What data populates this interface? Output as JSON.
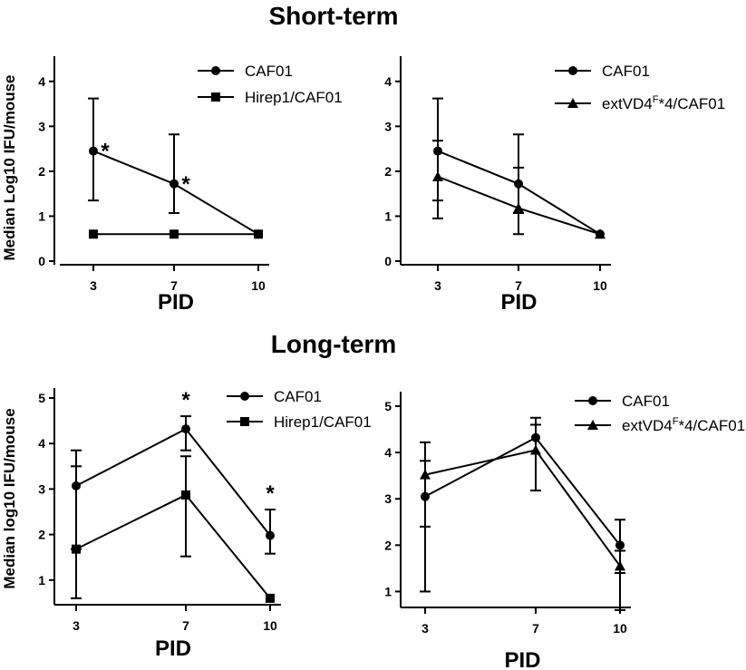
{
  "figure": {
    "top_title": "Short-term",
    "bottom_title": "Long-term"
  },
  "chart_data": [
    {
      "type": "line",
      "section": "Short-term",
      "title": "",
      "xlabel": "PID",
      "ylabel": "Median Log10 IFU/mouse",
      "x": [
        3,
        7,
        10
      ],
      "x_tick_labels": [
        "3",
        "7",
        "10"
      ],
      "ylim": [
        0,
        4.5
      ],
      "y_ticks": [
        0,
        1,
        2,
        3,
        4
      ],
      "y_tick_labels": [
        "0",
        "1",
        "2",
        "3",
        "4"
      ],
      "series": [
        {
          "name": "CAF01",
          "marker": "circle",
          "values": [
            2.45,
            1.72,
            0.6
          ],
          "error_low": [
            1.35,
            1.07,
            0.6
          ],
          "error_high": [
            3.62,
            2.82,
            0.6
          ]
        },
        {
          "name": "Hirep1/CAF01",
          "marker": "square",
          "values": [
            0.6,
            0.6,
            0.6
          ],
          "error_low": [
            0.6,
            0.6,
            0.6
          ],
          "error_high": [
            0.6,
            0.6,
            0.6
          ]
        }
      ],
      "annotations": [
        {
          "text": "*",
          "x": 3,
          "y": 2.45
        },
        {
          "text": "*",
          "x": 7,
          "y": 1.72
        }
      ]
    },
    {
      "type": "line",
      "section": "Short-term",
      "title": "",
      "xlabel": "PID",
      "ylabel": "",
      "x": [
        3,
        7,
        10
      ],
      "x_tick_labels": [
        "3",
        "7",
        "10"
      ],
      "ylim": [
        0,
        4.5
      ],
      "y_ticks": [
        0,
        1,
        2,
        3,
        4
      ],
      "y_tick_labels": [
        "0",
        "1",
        "2",
        "3",
        "4"
      ],
      "series": [
        {
          "name": "CAF01",
          "marker": "circle",
          "values": [
            2.45,
            1.72,
            0.6
          ],
          "error_low": [
            1.35,
            1.07,
            0.6
          ],
          "error_high": [
            3.62,
            2.82,
            0.6
          ]
        },
        {
          "name": "extVD4F*4/CAF01",
          "label_main": "extVD4",
          "label_sup": "F",
          "label_rest": "*4/CAF01",
          "marker": "triangle",
          "values": [
            1.88,
            1.18,
            0.6
          ],
          "error_low": [
            0.95,
            0.6,
            0.6
          ],
          "error_high": [
            2.68,
            2.08,
            0.6
          ]
        }
      ],
      "annotations": []
    },
    {
      "type": "line",
      "section": "Long-term",
      "title": "",
      "xlabel": "PID",
      "ylabel": "Median log10 IFU/mouse",
      "x": [
        3,
        7,
        10
      ],
      "x_tick_labels": [
        "3",
        "7",
        "10"
      ],
      "ylim": [
        0,
        5
      ],
      "y_ticks": [
        1,
        2,
        3,
        4,
        5
      ],
      "y_tick_labels": [
        "1",
        "2",
        "3",
        "4",
        "5"
      ],
      "series": [
        {
          "name": "CAF01",
          "marker": "circle",
          "values": [
            3.07,
            4.32,
            1.98
          ],
          "error_low": [
            1.68,
            3.85,
            1.58
          ],
          "error_high": [
            3.85,
            4.6,
            2.55
          ]
        },
        {
          "name": "Hirep1/CAF01",
          "marker": "square",
          "values": [
            1.68,
            2.87,
            0.6
          ],
          "error_low": [
            0.6,
            1.52,
            0.6
          ],
          "error_high": [
            3.5,
            3.72,
            0.6
          ]
        }
      ],
      "annotations": [
        {
          "text": "*",
          "x": 7,
          "y": 4.6
        },
        {
          "text": "*",
          "x": 10,
          "y": 2.55
        }
      ]
    },
    {
      "type": "line",
      "section": "Long-term",
      "title": "",
      "xlabel": "PID",
      "ylabel": "",
      "x": [
        3,
        7,
        10
      ],
      "x_tick_labels": [
        "3",
        "7",
        "10"
      ],
      "ylim": [
        0.5,
        5
      ],
      "y_ticks": [
        1,
        2,
        3,
        4,
        5
      ],
      "y_tick_labels": [
        "1",
        "2",
        "3",
        "4",
        "5"
      ],
      "series": [
        {
          "name": "CAF01",
          "marker": "circle",
          "values": [
            3.05,
            4.32,
            2.0
          ],
          "error_low": [
            1.0,
            3.18,
            1.4
          ],
          "error_high": [
            4.22,
            4.75,
            2.55
          ]
        },
        {
          "name": "extVD4F*4/CAF01",
          "label_main": "extVD4",
          "label_sup": "F",
          "label_rest": "*4/CAF01",
          "marker": "triangle",
          "values": [
            3.52,
            4.05,
            1.55
          ],
          "error_low": [
            2.4,
            3.18,
            0.6
          ],
          "error_high": [
            3.82,
            4.6,
            1.88
          ]
        }
      ],
      "annotations": []
    }
  ]
}
